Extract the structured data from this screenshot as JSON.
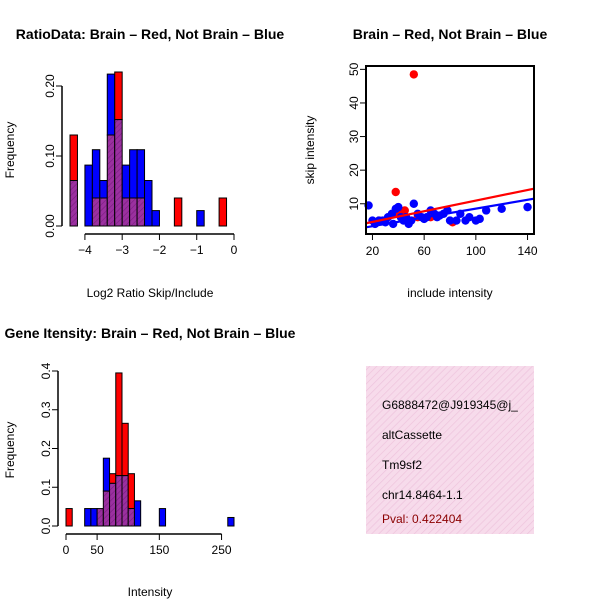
{
  "chart_data": [
    {
      "id": "ratio",
      "type": "bar",
      "title": "RatioData: Brain – Red, Not Brain – Blue",
      "xlabel": "Log2 Ratio Skip/Include",
      "ylabel": "Frequency",
      "xlim": [
        -4.4,
        0.0
      ],
      "ylim": [
        0,
        0.22
      ],
      "xticks": [
        -4,
        -3,
        -2,
        -1,
        0
      ],
      "xtick_labels": [
        "−4",
        "−3",
        "−2",
        "−1",
        "0"
      ],
      "yticks": [
        0.0,
        0.1,
        0.2
      ],
      "ytick_labels": [
        "0.00",
        "0.10",
        "0.20"
      ],
      "bin_width": 0.2,
      "bin_starts": [
        -4.4,
        -4.2,
        -4.0,
        -3.8,
        -3.6,
        -3.4,
        -3.2,
        -3.0,
        -2.8,
        -2.6,
        -2.4,
        -2.2,
        -2.0,
        -1.8,
        -1.6,
        -1.4,
        -1.2,
        -1.0,
        -0.8,
        -0.6,
        -0.4,
        -0.2
      ],
      "series": [
        {
          "name": "Brain",
          "color": "#ff0000",
          "values": [
            0.13,
            0.0,
            0.0,
            0.04,
            0.04,
            0.13,
            0.22,
            0.04,
            0.04,
            0.04,
            0.0,
            0.0,
            0.0,
            0.0,
            0.04,
            0.0,
            0.0,
            0.0,
            0.0,
            0.0,
            0.04,
            0.0
          ]
        },
        {
          "name": "Not Brain",
          "color": "#0000ff",
          "values": [
            0.065,
            0.0,
            0.087,
            0.109,
            0.065,
            0.217,
            0.152,
            0.087,
            0.109,
            0.109,
            0.065,
            0.022,
            0.0,
            0.0,
            0.0,
            0.0,
            0.0,
            0.022,
            0.0,
            0.0,
            0.0,
            0.0
          ]
        }
      ]
    },
    {
      "id": "scatter",
      "type": "scatter",
      "title": "Brain – Red, Not Brain – Blue",
      "xlabel": "include intensity",
      "ylabel": "skip intensity",
      "xlim": [
        15,
        145
      ],
      "ylim": [
        1,
        51
      ],
      "xticks": [
        20,
        60,
        100,
        140
      ],
      "yticks": [
        10,
        20,
        30,
        40,
        50
      ],
      "series": [
        {
          "name": "Brain",
          "color": "#ff0000",
          "points": [
            [
              52,
              48.5
            ],
            [
              38,
              13.5
            ],
            [
              45,
              8
            ],
            [
              30,
              5
            ],
            [
              55,
              6
            ],
            [
              82,
              4.5
            ],
            [
              25,
              5
            ],
            [
              40,
              7
            ],
            [
              65,
              6
            ]
          ]
        },
        {
          "name": "Not Brain",
          "color": "#0000ff",
          "points": [
            [
              17,
              9.5
            ],
            [
              20,
              5
            ],
            [
              22,
              4
            ],
            [
              25,
              5
            ],
            [
              28,
              5
            ],
            [
              30,
              4.5
            ],
            [
              32,
              6
            ],
            [
              35,
              7
            ],
            [
              36,
              4
            ],
            [
              38,
              8.5
            ],
            [
              40,
              9
            ],
            [
              42,
              6
            ],
            [
              44,
              5
            ],
            [
              46,
              6
            ],
            [
              48,
              4
            ],
            [
              50,
              5
            ],
            [
              52,
              10
            ],
            [
              55,
              7
            ],
            [
              58,
              6
            ],
            [
              60,
              5.5
            ],
            [
              62,
              6
            ],
            [
              65,
              8
            ],
            [
              68,
              7
            ],
            [
              70,
              6
            ],
            [
              72,
              6.5
            ],
            [
              75,
              7
            ],
            [
              78,
              8
            ],
            [
              80,
              5
            ],
            [
              85,
              5
            ],
            [
              88,
              7
            ],
            [
              92,
              5
            ],
            [
              95,
              6
            ],
            [
              100,
              5
            ],
            [
              103,
              5.5
            ],
            [
              108,
              8
            ],
            [
              120,
              8.5
            ],
            [
              140,
              9
            ]
          ]
        }
      ],
      "fits": [
        {
          "name": "Brain fit",
          "color": "#ff0000",
          "from": [
            15,
            4.2
          ],
          "to": [
            145,
            14.5
          ]
        },
        {
          "name": "Not Brain fit",
          "color": "#0000ff",
          "from": [
            15,
            3.0
          ],
          "to": [
            145,
            11.5
          ]
        }
      ]
    },
    {
      "id": "intensity",
      "type": "bar",
      "title": "Gene Itensity: Brain – Red, Not Brain – Blue",
      "xlabel": "Intensity",
      "ylabel": "Frequency",
      "xlim": [
        0,
        270
      ],
      "ylim": [
        0,
        0.4
      ],
      "xticks": [
        0,
        50,
        150,
        250
      ],
      "yticks": [
        0.0,
        0.1,
        0.2,
        0.3,
        0.4
      ],
      "ytick_labels": [
        "0.0",
        "0.1",
        "0.2",
        "0.3",
        "0.4"
      ],
      "bin_width": 10,
      "bin_starts": [
        0,
        10,
        20,
        30,
        40,
        50,
        60,
        70,
        80,
        90,
        100,
        110,
        120,
        130,
        140,
        150,
        160,
        170,
        180,
        190,
        200,
        210,
        220,
        230,
        240,
        250,
        260
      ],
      "series": [
        {
          "name": "Brain",
          "color": "#ff0000",
          "values": [
            0.045,
            0.0,
            0.0,
            0.0,
            0.0,
            0.045,
            0.09,
            0.135,
            0.395,
            0.265,
            0.135,
            0.0,
            0.0,
            0.0,
            0.0,
            0.0,
            0.0,
            0.0,
            0.0,
            0.0,
            0.0,
            0.0,
            0.0,
            0.0,
            0.0,
            0.0,
            0.0
          ]
        },
        {
          "name": "Not Brain",
          "color": "#0000ff",
          "values": [
            0.0,
            0.0,
            0.0,
            0.045,
            0.045,
            0.045,
            0.175,
            0.11,
            0.13,
            0.13,
            0.045,
            0.065,
            0.0,
            0.0,
            0.0,
            0.045,
            0.0,
            0.0,
            0.0,
            0.0,
            0.0,
            0.0,
            0.0,
            0.0,
            0.0,
            0.0,
            0.022
          ]
        }
      ]
    }
  ],
  "info_box": {
    "gene_id": "G6888472@J919345@j_",
    "event_type": "altCassette",
    "gene_name": "Tm9sf2",
    "location": "chr14.8464-1.1",
    "pval": "Pval: 0.422404"
  },
  "colors": {
    "overlap": "#9b30a0",
    "info_bg": "#f7dbeb",
    "info_hatch": "#eec3dc"
  }
}
